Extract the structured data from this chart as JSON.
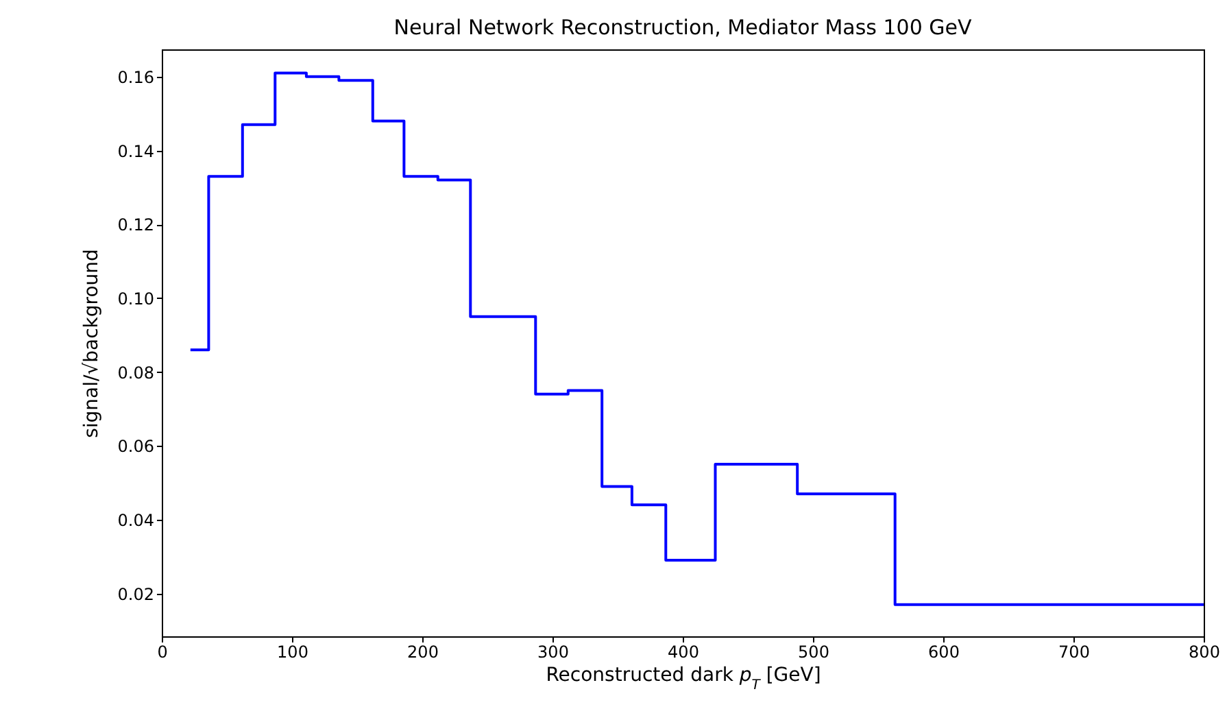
{
  "chart_data": {
    "type": "histogram",
    "title": "Neural Network Reconstruction, Mediator Mass 100 GeV",
    "xlabel": "Reconstructed dark p$_{T}$ [GeV]",
    "ylabel": "signal/√background",
    "bins": [
      22,
      36,
      62,
      87,
      111,
      136,
      162,
      186,
      212,
      237,
      287,
      312,
      338,
      361,
      387,
      425,
      488,
      563,
      800
    ],
    "values": [
      0.086,
      0.133,
      0.147,
      0.161,
      0.16,
      0.159,
      0.148,
      0.133,
      0.132,
      0.095,
      0.074,
      0.075,
      0.049,
      0.044,
      0.029,
      0.055,
      0.047,
      0.017
    ],
    "color": "#0000ff",
    "xlim": [
      0,
      800
    ],
    "xticks": [
      0,
      100,
      200,
      300,
      400,
      500,
      600,
      700,
      800
    ],
    "ylim": [
      0.0084,
      0.1674
    ],
    "yticks": [
      {
        "value": 0.02,
        "label": "0.02"
      },
      {
        "value": 0.04,
        "label": "0.04"
      },
      {
        "value": 0.06,
        "label": "0.06"
      },
      {
        "value": 0.08,
        "label": "0.08"
      },
      {
        "value": 0.1,
        "label": "0.10"
      },
      {
        "value": 0.12,
        "label": "0.12"
      },
      {
        "value": 0.14,
        "label": "0.14"
      },
      {
        "value": 0.16,
        "label": "0.16"
      }
    ],
    "grid": false
  }
}
